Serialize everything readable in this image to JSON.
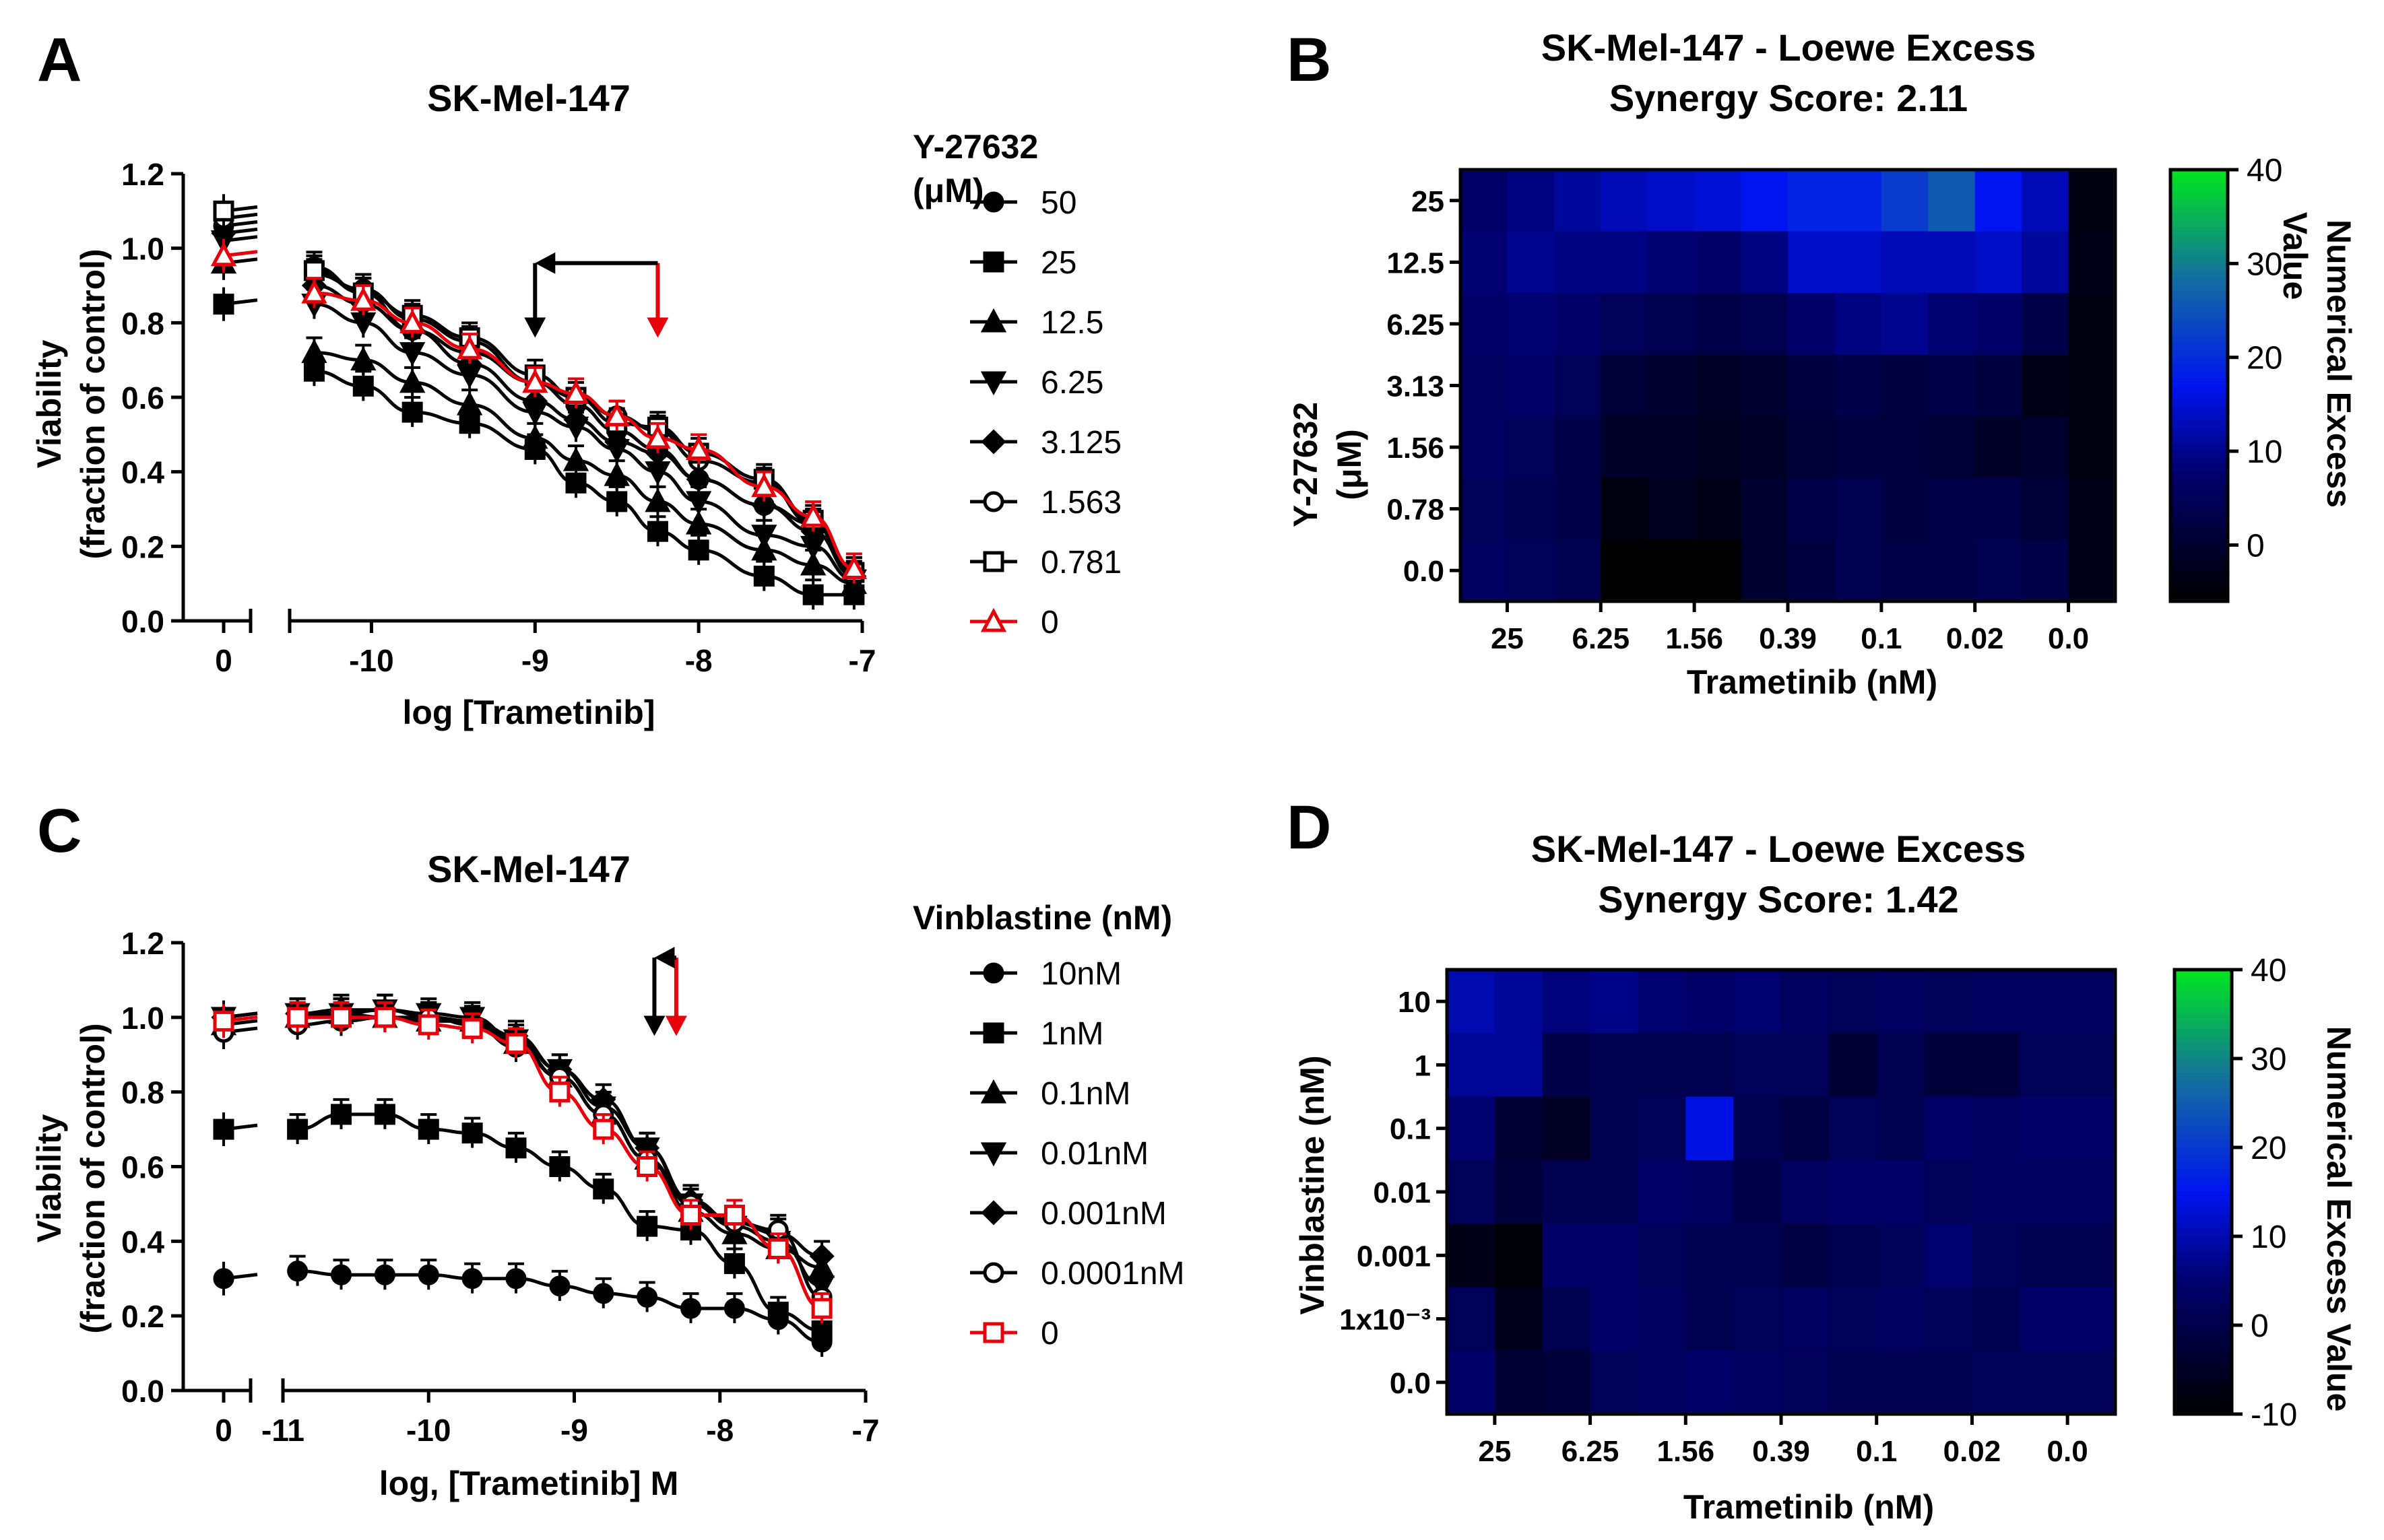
{
  "panels": {
    "A": {
      "letter": "A",
      "title": "SK-Mel-147",
      "ylabel_line1": "Viability",
      "ylabel_line2": "(fraction of control)",
      "xlabel": "log [Trametinib]",
      "legend_title_line1": "Y-27632",
      "legend_title_line2": "(μM)"
    },
    "B": {
      "letter": "B",
      "title_line1": "SK-Mel-147 - Loewe Excess",
      "title_line2": "Synergy Score: 2.11",
      "xlabel": "Trametinib (nM)",
      "ylabel_line1": "Y-27632",
      "ylabel_line2": "(μM)",
      "colorbar_label_line1": "Numerical Excess",
      "colorbar_label_line2": "Value"
    },
    "C": {
      "letter": "C",
      "title": "SK-Mel-147",
      "ylabel_line1": "Viability",
      "ylabel_line2": "(fraction of control)",
      "xlabel": "log, [Trametinib] M",
      "legend_title": "Vinblastine (nM)"
    },
    "D": {
      "letter": "D",
      "title_line1": "SK-Mel-147 - Loewe Excess",
      "title_line2": "Synergy Score: 1.42",
      "xlabel": "Trametinib (nM)",
      "ylabel": "Vinblastine (nM)",
      "colorbar_label": "Numerical Excess Value"
    }
  },
  "chart_data": [
    {
      "id": "A",
      "type": "line",
      "title": "SK-Mel-147",
      "xlabel": "log [Trametinib]",
      "ylabel": "Viability (fraction of control)",
      "xlim": [
        -10.5,
        -7
      ],
      "ylim": [
        0,
        1.2
      ],
      "x_ticks": [
        -10,
        -9,
        -8,
        -7
      ],
      "x_tick_labels": [
        "-10",
        "-9",
        "-8",
        "-7"
      ],
      "zero_tick_label": "0",
      "y_ticks": [
        0,
        0.2,
        0.4,
        0.6,
        0.8,
        1.0,
        1.2
      ],
      "y_tick_labels": [
        "0.0",
        "0.2",
        "0.4",
        "0.6",
        "0.8",
        "1.0",
        "1.2"
      ],
      "x": [
        -10.35,
        -10.05,
        -9.75,
        -9.4,
        -9.0,
        -8.75,
        -8.5,
        -8.25,
        -8.0,
        -7.6,
        -7.3,
        -7.05
      ],
      "series": [
        {
          "name": "50",
          "marker": "circle",
          "color": "#000000",
          "zero_value": 1.06,
          "values": [
            0.95,
            0.88,
            0.78,
            0.72,
            0.64,
            0.58,
            0.51,
            0.46,
            0.38,
            0.31,
            0.26,
            0.13
          ]
        },
        {
          "name": "25",
          "marker": "square",
          "color": "#000000",
          "zero_value": 0.85,
          "values": [
            0.67,
            0.63,
            0.56,
            0.53,
            0.46,
            0.37,
            0.32,
            0.24,
            0.19,
            0.12,
            0.07,
            0.07
          ]
        },
        {
          "name": "12.5",
          "marker": "triangle",
          "color": "#000000",
          "zero_value": 0.96,
          "values": [
            0.72,
            0.7,
            0.64,
            0.58,
            0.49,
            0.43,
            0.39,
            0.32,
            0.26,
            0.19,
            0.15,
            0.1
          ]
        },
        {
          "name": "6.25",
          "marker": "triangle-down",
          "color": "#000000",
          "zero_value": 1.02,
          "values": [
            0.85,
            0.8,
            0.72,
            0.66,
            0.56,
            0.52,
            0.46,
            0.4,
            0.32,
            0.23,
            0.2,
            0.11
          ]
        },
        {
          "name": "3.125",
          "marker": "diamond",
          "color": "#000000",
          "zero_value": 1.04,
          "values": [
            0.9,
            0.85,
            0.78,
            0.69,
            0.59,
            0.54,
            0.48,
            0.45,
            0.38,
            0.31,
            0.24,
            0.12
          ]
        },
        {
          "name": "1.563",
          "marker": "circle-open",
          "color": "#000000",
          "zero_value": 1.08,
          "values": [
            0.93,
            0.89,
            0.81,
            0.75,
            0.64,
            0.6,
            0.55,
            0.51,
            0.43,
            0.37,
            0.26,
            0.12
          ]
        },
        {
          "name": "0.781",
          "marker": "square-open",
          "color": "#000000",
          "zero_value": 1.1,
          "values": [
            0.94,
            0.88,
            0.82,
            0.76,
            0.66,
            0.6,
            0.53,
            0.52,
            0.45,
            0.38,
            0.27,
            0.13
          ]
        },
        {
          "name": "0",
          "marker": "triangle-open",
          "color": "#e8000b",
          "zero_value": 0.98,
          "values": [
            0.88,
            0.86,
            0.8,
            0.73,
            0.64,
            0.61,
            0.55,
            0.49,
            0.46,
            0.36,
            0.28,
            0.14
          ]
        }
      ],
      "annotations": [
        {
          "type": "arrow",
          "color": "#e8000b",
          "x": -8.25,
          "y_from": 0.96,
          "y_to": 0.76
        },
        {
          "type": "bracket-arrow",
          "color": "#000000",
          "x_from": -8.25,
          "x_to": -9.0,
          "y": 0.96,
          "y_to": 0.76
        }
      ]
    },
    {
      "id": "B",
      "type": "heatmap",
      "title": "SK-Mel-147 - Loewe Excess Synergy Score: 2.11",
      "xlabel": "Trametinib (nM)",
      "ylabel": "Y-27632 (μM)",
      "x_tick_labels": [
        "25",
        "6.25",
        "1.56",
        "0.39",
        "0.1",
        "0.02",
        "0.0"
      ],
      "y_tick_labels": [
        "25",
        "12.5",
        "6.25",
        "3.13",
        "1.56",
        "0.78",
        "0.0"
      ],
      "color_range": [
        -6,
        40
      ],
      "colorbar_ticks": [
        0,
        10,
        20,
        30,
        40
      ],
      "colorbar_tick_labels": [
        "0",
        "10",
        "20",
        "30",
        "40"
      ],
      "values": [
        [
          7,
          9,
          11,
          13,
          14,
          15,
          17,
          19,
          19,
          22,
          26,
          17,
          13,
          -4
        ],
        [
          8,
          10,
          9,
          9,
          8,
          7,
          9,
          14,
          14,
          13,
          13,
          14,
          11,
          -3
        ],
        [
          7,
          8,
          7,
          5,
          4,
          3,
          4,
          7,
          9,
          10,
          8,
          7,
          3,
          -4
        ],
        [
          6,
          7,
          5,
          1,
          0,
          -1,
          0,
          2,
          3,
          2,
          3,
          2,
          -3,
          -4
        ],
        [
          6,
          5,
          3,
          -1,
          -1,
          -2,
          -1,
          1,
          2,
          2,
          1,
          -1,
          0,
          -4
        ],
        [
          5,
          4,
          3,
          -4,
          -2,
          -3,
          0,
          3,
          4,
          2,
          3,
          3,
          1,
          -3
        ],
        [
          6,
          5,
          4,
          -6,
          -6,
          -6,
          0,
          2,
          4,
          3,
          3,
          4,
          3,
          -3
        ]
      ]
    },
    {
      "id": "C",
      "type": "line",
      "title": "SK-Mel-147",
      "xlabel": "log, [Trametinib] M",
      "ylabel": "Viability (fraction of control)",
      "xlim": [
        -11,
        -7
      ],
      "ylim": [
        0,
        1.2
      ],
      "x_ticks": [
        -11,
        -10,
        -9,
        -8,
        -7
      ],
      "x_tick_labels": [
        "-11",
        "-10",
        "-9",
        "-8",
        "-7"
      ],
      "zero_tick_label": "0",
      "y_ticks": [
        0,
        0.2,
        0.4,
        0.6,
        0.8,
        1.0,
        1.2
      ],
      "y_tick_labels": [
        "0.0",
        "0.2",
        "0.4",
        "0.6",
        "0.8",
        "1.0",
        "1.2"
      ],
      "x": [
        -10.9,
        -10.6,
        -10.3,
        -10.0,
        -9.7,
        -9.4,
        -9.1,
        -8.8,
        -8.5,
        -8.2,
        -7.9,
        -7.6,
        -7.3
      ],
      "series": [
        {
          "name": "10nM",
          "marker": "circle",
          "color": "#000000",
          "zero_value": 0.3,
          "values": [
            0.32,
            0.31,
            0.31,
            0.31,
            0.3,
            0.3,
            0.28,
            0.26,
            0.25,
            0.22,
            0.22,
            0.19,
            0.13
          ]
        },
        {
          "name": "1nM",
          "marker": "square",
          "color": "#000000",
          "zero_value": 0.7,
          "values": [
            0.7,
            0.74,
            0.74,
            0.7,
            0.69,
            0.65,
            0.6,
            0.54,
            0.44,
            0.43,
            0.34,
            0.21,
            0.16
          ]
        },
        {
          "name": "0.1nM",
          "marker": "triangle",
          "color": "#000000",
          "zero_value": 0.98,
          "values": [
            1.0,
            1.01,
            1.0,
            0.99,
            0.99,
            0.93,
            0.84,
            0.74,
            0.62,
            0.48,
            0.42,
            0.38,
            0.33
          ]
        },
        {
          "name": "0.01nM",
          "marker": "triangle-down",
          "color": "#000000",
          "zero_value": 1.0,
          "values": [
            1.01,
            1.01,
            1.02,
            1.01,
            1.0,
            0.94,
            0.86,
            0.76,
            0.65,
            0.5,
            0.44,
            0.4,
            0.28
          ]
        },
        {
          "name": "0.001nM",
          "marker": "diamond",
          "color": "#000000",
          "zero_value": 1.0,
          "values": [
            1.01,
            1.02,
            1.02,
            1.0,
            0.99,
            0.95,
            0.86,
            0.78,
            0.65,
            0.51,
            0.45,
            0.42,
            0.36
          ]
        },
        {
          "name": "0.0001nM",
          "marker": "circle-open",
          "color": "#000000",
          "zero_value": 0.96,
          "values": [
            0.98,
            0.99,
            1.0,
            1.0,
            0.98,
            0.92,
            0.84,
            0.74,
            0.62,
            0.5,
            0.45,
            0.43,
            0.25
          ]
        },
        {
          "name": "0",
          "marker": "square-open",
          "color": "#e8000b",
          "zero_value": 0.99,
          "values": [
            1.0,
            1.0,
            1.0,
            0.98,
            0.97,
            0.93,
            0.8,
            0.7,
            0.6,
            0.47,
            0.47,
            0.38,
            0.22
          ]
        }
      ],
      "annotations": [
        {
          "type": "arrow",
          "color": "#e8000b",
          "x": -8.3,
          "y_from": 1.16,
          "y_to": 0.95
        },
        {
          "type": "bracket-arrow",
          "color": "#000000",
          "x_from": -8.3,
          "x_to": -8.45,
          "y": 1.16,
          "y_to": 0.95
        }
      ]
    },
    {
      "id": "D",
      "type": "heatmap",
      "title": "SK-Mel-147 - Loewe Excess Synergy Score: 1.42",
      "xlabel": "Trametinib (nM)",
      "ylabel": "Vinblastine (nM)",
      "x_tick_labels": [
        "25",
        "6.25",
        "1.56",
        "0.39",
        "0.1",
        "0.02",
        "0.0"
      ],
      "y_tick_labels": [
        "10",
        "1",
        "0.1",
        "0.01",
        "0.001",
        "1x10⁻³",
        "0.0"
      ],
      "color_range": [
        -10,
        40
      ],
      "colorbar_ticks": [
        -10,
        0,
        10,
        20,
        30,
        40
      ],
      "colorbar_tick_labels": [
        "-10",
        "0",
        "10",
        "20",
        "30",
        "40"
      ],
      "values": [
        [
          10,
          8,
          6,
          7,
          5,
          4,
          5,
          3,
          2,
          3,
          2,
          3,
          3,
          3
        ],
        [
          8,
          8,
          0,
          1,
          1,
          1,
          2,
          2,
          -3,
          1,
          -2,
          -2,
          2,
          2
        ],
        [
          5,
          -3,
          -5,
          1,
          2,
          14,
          1,
          -1,
          2,
          1,
          4,
          3,
          4,
          4
        ],
        [
          2,
          -2,
          1,
          1,
          4,
          3,
          0,
          3,
          4,
          4,
          2,
          3,
          3,
          3
        ],
        [
          -7,
          -9,
          4,
          4,
          2,
          1,
          1,
          -1,
          1,
          2,
          5,
          2,
          1,
          1
        ],
        [
          2,
          -6,
          1,
          4,
          3,
          1,
          2,
          3,
          2,
          3,
          2,
          1,
          4,
          4
        ],
        [
          4,
          -3,
          -2,
          2,
          3,
          4,
          3,
          2,
          1,
          1,
          1,
          2,
          2,
          2
        ]
      ]
    }
  ]
}
